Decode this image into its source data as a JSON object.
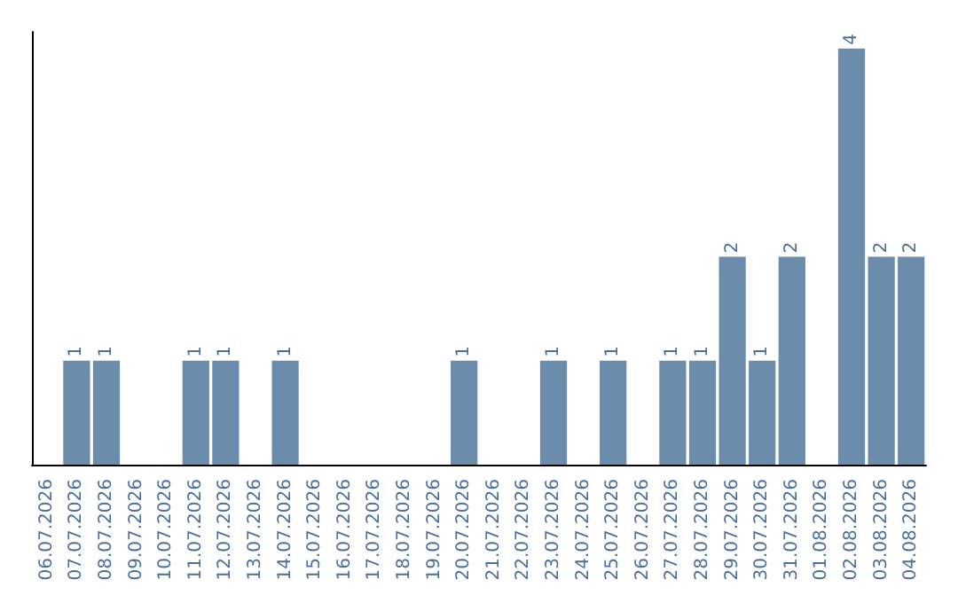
{
  "chart_data": {
    "type": "bar",
    "categories": [
      "06.07.2026",
      "07.07.2026",
      "08.07.2026",
      "09.07.2026",
      "10.07.2026",
      "11.07.2026",
      "12.07.2026",
      "13.07.2026",
      "14.07.2026",
      "15.07.2026",
      "16.07.2026",
      "17.07.2026",
      "18.07.2026",
      "19.07.2026",
      "20.07.2026",
      "21.07.2026",
      "22.07.2026",
      "23.07.2026",
      "24.07.2026",
      "25.07.2026",
      "26.07.2026",
      "27.07.2026",
      "28.07.2026",
      "29.07.2026",
      "30.07.2026",
      "31.07.2026",
      "01.08.2026",
      "02.08.2026",
      "03.08.2026",
      "04.08.2026"
    ],
    "values": [
      null,
      1,
      1,
      null,
      null,
      1,
      1,
      null,
      1,
      null,
      null,
      null,
      null,
      null,
      1,
      null,
      null,
      1,
      null,
      1,
      null,
      1,
      1,
      2,
      1,
      2,
      null,
      4,
      2,
      2
    ],
    "color": "#6b8cab",
    "data_labels": true,
    "tick_labels": "x"
  }
}
